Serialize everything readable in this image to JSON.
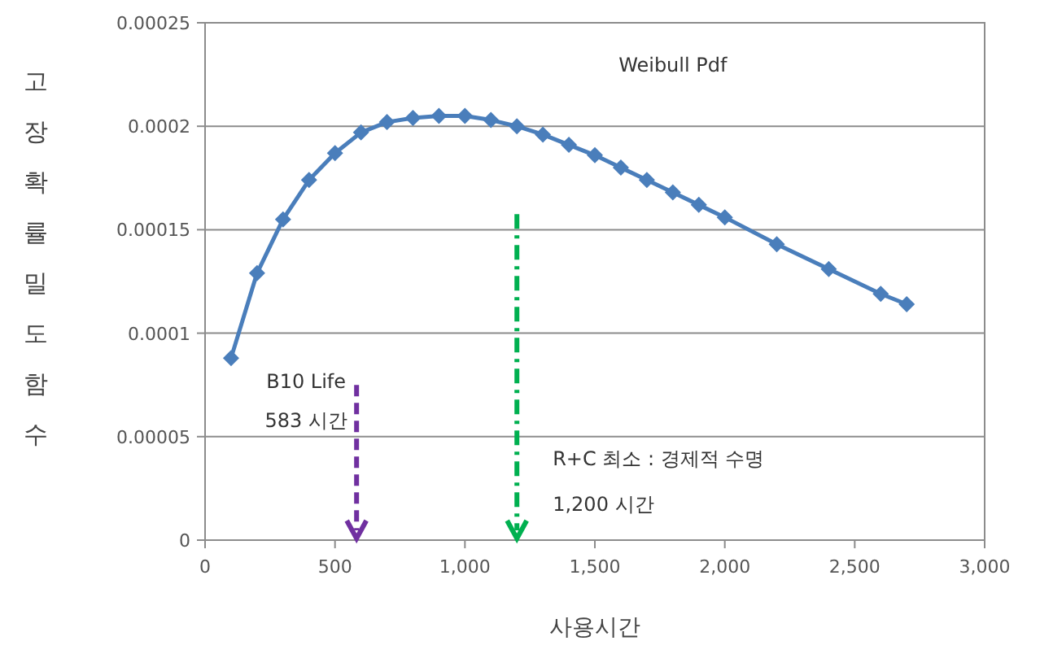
{
  "chart_data": {
    "type": "line",
    "title": "Weibull Pdf",
    "xlabel": "사용시간",
    "ylabel": "고장확률밀도함수",
    "x": [
      100,
      200,
      300,
      400,
      500,
      600,
      700,
      800,
      900,
      1000,
      1100,
      1200,
      1300,
      1400,
      1500,
      1600,
      1700,
      1800,
      1900,
      2000,
      2200,
      2400,
      2600,
      2700
    ],
    "series": [
      {
        "color": "#4a7ebb",
        "values": [
          8.8e-05,
          0.000129,
          0.000155,
          0.000174,
          0.000187,
          0.000197,
          0.000202,
          0.000204,
          0.000205,
          0.000205,
          0.000203,
          0.0002,
          0.000196,
          0.000191,
          0.000186,
          0.00018,
          0.000174,
          0.000168,
          0.000162,
          0.000156,
          0.000143,
          0.000131,
          0.000119,
          0.000114
        ]
      }
    ],
    "xlim": [
      0,
      3000
    ],
    "xticks": [
      0,
      {
        "value": 500,
        "label": "500"
      },
      {
        "value": 1000,
        "label": "1,000"
      },
      {
        "value": 1500,
        "label": "1,500"
      },
      {
        "value": 2000,
        "label": "2,000"
      },
      {
        "value": 2500,
        "label": "2,500"
      },
      {
        "value": 3000,
        "label": "3,000"
      }
    ],
    "ylim": [
      0,
      0.00025
    ],
    "yticks": [
      0,
      {
        "value": 5e-05,
        "label": "0.00005"
      },
      0.0001,
      0.00015,
      0.0002,
      0.00025
    ],
    "grid": "y",
    "marker": "diamond",
    "line_style": "solid",
    "ref_lines": [
      {
        "axis": "x",
        "value": 583,
        "label": "B10 Life\n583 시간",
        "color": "#7030a0",
        "line_style": "dashed"
      },
      {
        "axis": "x",
        "value": 1200,
        "label": "R+C 최소 : 경제적 수명\n1,200 시간",
        "color": "#00b050",
        "line_style": "dashdot"
      }
    ]
  }
}
